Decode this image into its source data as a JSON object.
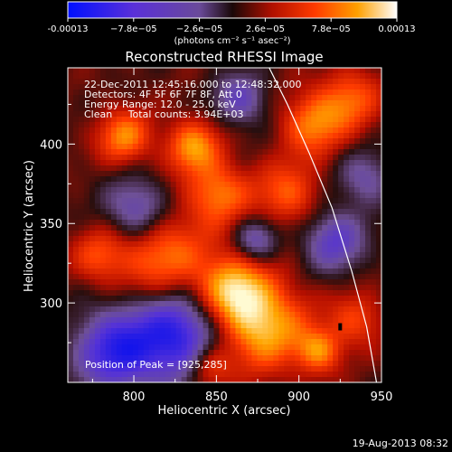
{
  "colorbar": {
    "tick_labels": [
      "-0.00013",
      "−7.8e−05",
      "−2.6e−05",
      "2.6e−05",
      "7.8e−05",
      "0.00013"
    ],
    "tick_values": [
      -0.00013,
      -7.8e-05,
      -2.6e-05,
      2.6e-05,
      7.8e-05,
      0.00013
    ],
    "unit_label": "(photons cm⁻² s⁻¹ asec⁻²)",
    "range": [
      -0.00013,
      0.00013
    ]
  },
  "chart_data": {
    "type": "heatmap",
    "title": "Reconstructed RHESSI Image",
    "xlabel": "Heliocentric X (arcsec)",
    "ylabel": "Heliocentric Y (arcsec)",
    "xlim": [
      760,
      950
    ],
    "ylim": [
      250,
      448
    ],
    "x_ticks": [
      800,
      850,
      900,
      950
    ],
    "y_ticks": [
      300,
      350,
      400
    ],
    "x_tick_labels": [
      "800",
      "850",
      "900",
      "950"
    ],
    "y_tick_labels": [
      "300",
      "350",
      "400"
    ],
    "peak": [
      925,
      285
    ],
    "limb": [
      [
        882,
        448
      ],
      [
        893,
        425
      ],
      [
        906,
        395
      ],
      [
        920,
        360
      ],
      [
        932,
        320
      ],
      [
        941,
        285
      ],
      [
        947,
        250
      ]
    ]
  },
  "annotations": {
    "lines": [
      "22-Dec-2011 12:45:16.000 to 12:48:32.000",
      "Detectors: 4F 5F 6F 7F 8F, Att 0",
      "Energy Range: 12.0 - 25.0 keV",
      "Clean     Total counts: 3.94E+03"
    ],
    "peak_text": "Position of Peak = [925,285]"
  },
  "footer": {
    "date": "19-Aug-2013 08:32"
  }
}
